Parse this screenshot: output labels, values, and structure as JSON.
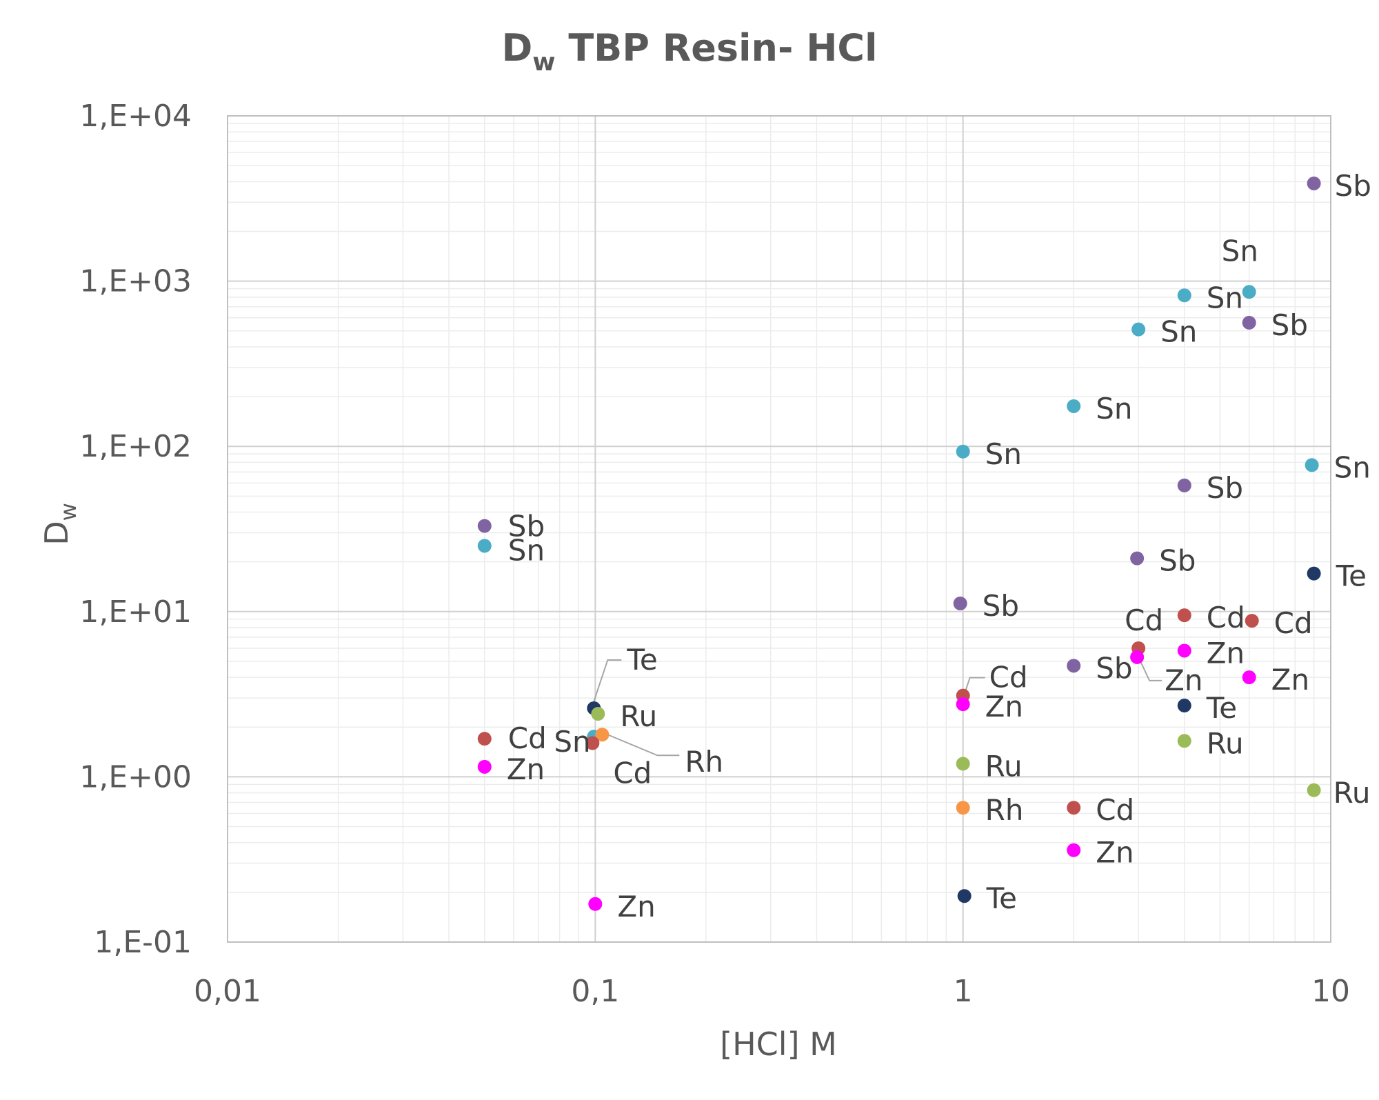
{
  "chart_data": {
    "type": "scatter",
    "title": "D",
    "title_subscript": "w",
    "title_rest": " TBP Resin- HCl",
    "xlabel": "[HCl] M",
    "ylabel": "D",
    "ylabel_subscript": "w",
    "x_scale": "log",
    "y_scale": "log",
    "xlim": [
      0.01,
      10
    ],
    "ylim": [
      0.1,
      10000
    ],
    "x_ticks": [
      {
        "value": 0.01,
        "label": "0,01"
      },
      {
        "value": 0.1,
        "label": "0,1"
      },
      {
        "value": 1,
        "label": "1"
      },
      {
        "value": 10,
        "label": "10"
      }
    ],
    "y_ticks": [
      {
        "value": 0.1,
        "label": "1,E-01"
      },
      {
        "value": 1,
        "label": "1,E+00"
      },
      {
        "value": 10,
        "label": "1,E+01"
      },
      {
        "value": 100,
        "label": "1,E+02"
      },
      {
        "value": 1000,
        "label": "1,E+03"
      },
      {
        "value": 10000,
        "label": "1,E+04"
      }
    ],
    "grid": true,
    "colors": {
      "Sb": "#8064a2",
      "Sn": "#4bacc6",
      "Te": "#1f3864",
      "Cd": "#c0504d",
      "Zn": "#ff00ff",
      "Ru": "#9bbb59",
      "Rh": "#f79646"
    },
    "points": [
      {
        "element": "Sb",
        "x": 0.05,
        "y": 33,
        "label": "Sb"
      },
      {
        "element": "Sn",
        "x": 0.05,
        "y": 25,
        "label": "Sn"
      },
      {
        "element": "Cd",
        "x": 0.05,
        "y": 1.7,
        "label": "Cd"
      },
      {
        "element": "Zn",
        "x": 0.05,
        "y": 1.15,
        "label": "Zn"
      },
      {
        "element": "Te",
        "x": 0.1,
        "y": 2.6,
        "label": "Te"
      },
      {
        "element": "Ru",
        "x": 0.1,
        "y": 2.5,
        "label": "Ru"
      },
      {
        "element": "Sn",
        "x": 0.1,
        "y": 1.75,
        "label": "Sn"
      },
      {
        "element": "Rh",
        "x": 0.1,
        "y": 1.8,
        "label": "Rh"
      },
      {
        "element": "Cd",
        "x": 0.1,
        "y": 1.6,
        "label": "Cd"
      },
      {
        "element": "Zn",
        "x": 0.1,
        "y": 0.17,
        "label": "Zn"
      },
      {
        "element": "Sn",
        "x": 1,
        "y": 93,
        "label": "Sn"
      },
      {
        "element": "Sb",
        "x": 1,
        "y": 11.2,
        "label": "Sb"
      },
      {
        "element": "Cd",
        "x": 1,
        "y": 3.1,
        "label": "Cd"
      },
      {
        "element": "Zn",
        "x": 1,
        "y": 2.75,
        "label": "Zn"
      },
      {
        "element": "Ru",
        "x": 1,
        "y": 1.2,
        "label": "Ru"
      },
      {
        "element": "Rh",
        "x": 1,
        "y": 0.65,
        "label": "Rh"
      },
      {
        "element": "Te",
        "x": 1,
        "y": 0.19,
        "label": "Te"
      },
      {
        "element": "Sn",
        "x": 2,
        "y": 175,
        "label": "Sn"
      },
      {
        "element": "Sb",
        "x": 2,
        "y": 4.7,
        "label": "Sb"
      },
      {
        "element": "Cd",
        "x": 2,
        "y": 0.65,
        "label": "Cd"
      },
      {
        "element": "Zn",
        "x": 2,
        "y": 0.36,
        "label": "Zn"
      },
      {
        "element": "Sn",
        "x": 3,
        "y": 510,
        "label": "Sn"
      },
      {
        "element": "Sb",
        "x": 3,
        "y": 21,
        "label": "Sb"
      },
      {
        "element": "Cd",
        "x": 3,
        "y": 6,
        "label": "Cd"
      },
      {
        "element": "Zn",
        "x": 3,
        "y": 5.3,
        "label": "Zn"
      },
      {
        "element": "Sn",
        "x": 4,
        "y": 820,
        "label": "Sn"
      },
      {
        "element": "Sb",
        "x": 4,
        "y": 58,
        "label": "Sb"
      },
      {
        "element": "Cd",
        "x": 4,
        "y": 9.5,
        "label": "Cd"
      },
      {
        "element": "Zn",
        "x": 4,
        "y": 5.8,
        "label": "Zn"
      },
      {
        "element": "Te",
        "x": 4,
        "y": 2.7,
        "label": "Te"
      },
      {
        "element": "Ru",
        "x": 4,
        "y": 1.65,
        "label": "Ru"
      },
      {
        "element": "Sn",
        "x": 6,
        "y": 860,
        "label": "Sn"
      },
      {
        "element": "Sb",
        "x": 6,
        "y": 560,
        "label": "Sb"
      },
      {
        "element": "Cd",
        "x": 6,
        "y": 8.8,
        "label": "Cd"
      },
      {
        "element": "Zn",
        "x": 6,
        "y": 4,
        "label": "Zn"
      },
      {
        "element": "Sb",
        "x": 9,
        "y": 3900,
        "label": "Sb"
      },
      {
        "element": "Sn",
        "x": 9,
        "y": 77,
        "label": "Sn"
      },
      {
        "element": "Te",
        "x": 9,
        "y": 17,
        "label": "Te"
      },
      {
        "element": "Ru",
        "x": 9,
        "y": 0.83,
        "label": "Ru"
      }
    ]
  }
}
